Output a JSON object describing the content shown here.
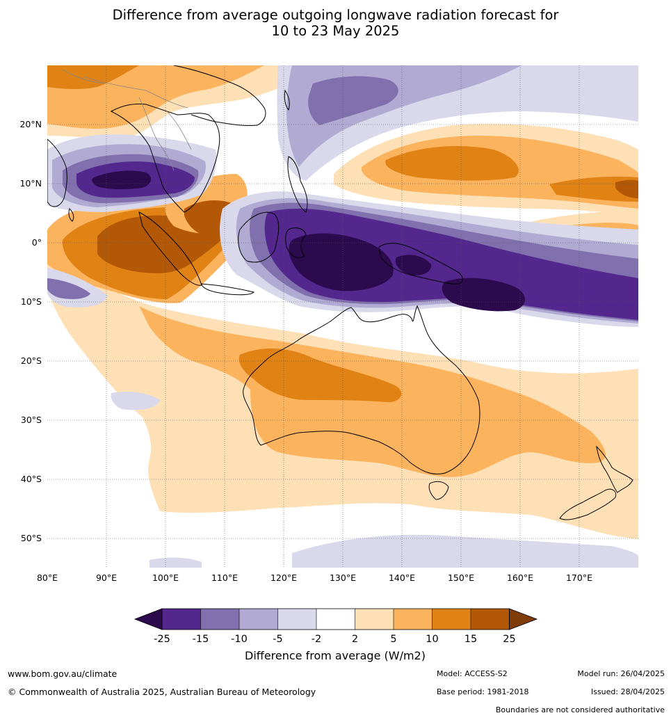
{
  "title_lines": [
    "Difference from average outgoing longwave radiation forecast for",
    "10 to 23 May 2025"
  ],
  "map": {
    "lon_labels": [
      "80°E",
      "90°E",
      "100°E",
      "110°E",
      "120°E",
      "130°E",
      "140°E",
      "150°E",
      "160°E",
      "170°E"
    ],
    "lat_labels": [
      "20°N",
      "10°N",
      "0°",
      "10°S",
      "20°S",
      "30°S",
      "40°S",
      "50°S"
    ],
    "lon_range": [
      80,
      180
    ],
    "lat_range": [
      -55,
      30
    ],
    "grid": true
  },
  "colorbar": {
    "label": "Difference from average (W/m2)",
    "ticks": [
      "-25",
      "-15",
      "-10",
      "-5",
      "-2",
      "2",
      "5",
      "10",
      "15",
      "25"
    ],
    "colors": {
      "below_-25": "#2d0a4e",
      "-25_-15": "#54278f",
      "-15_-10": "#8070ad",
      "-10_-5": "#b1abd3",
      "-5_-2": "#d9d9eb",
      "-2_2": "#ffffff",
      "2_5": "#fee0b6",
      "5_10": "#fbb35e",
      "10_15": "#e08214",
      "15_25": "#b35806",
      "above_25": "#7f3b08"
    }
  },
  "footer": {
    "website": "www.bom.gov.au/climate",
    "copyright": "© Commonwealth of Australia 2025, Australian Bureau of Meteorology",
    "model": "Model: ACCESS-S2",
    "base_period": "Base period: 1981-2018",
    "model_run": "Model run: 26/04/2025",
    "issued": "Issued: 28/04/2025",
    "disclaimer": "Boundaries are not considered authoritative"
  }
}
